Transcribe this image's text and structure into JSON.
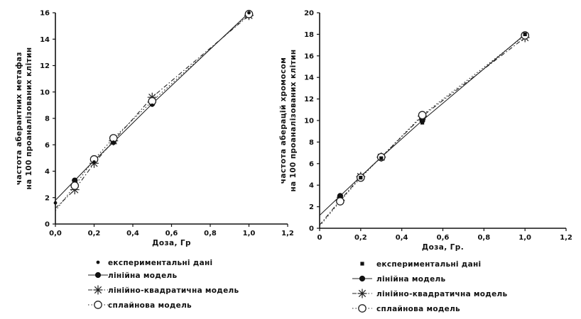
{
  "chart_data": [
    {
      "type": "line",
      "xlabel": "Доза, Гр",
      "ylabel_line1": "частота аберантних метафаз",
      "ylabel_line2": "на 100 проаналізованих клітин",
      "xlim": [
        0,
        1.2
      ],
      "ylim": [
        0,
        16
      ],
      "xticks": [
        "0,0",
        "0,2",
        "0,4",
        "0,6",
        "0,8",
        "1,0",
        "1,2"
      ],
      "yticks": [
        "0",
        "2",
        "4",
        "6",
        "8",
        "10",
        "12",
        "14",
        "16"
      ],
      "experimental": {
        "x": [
          0,
          0.1,
          0.2,
          0.3,
          0.5,
          1.0
        ],
        "y": [
          1.6,
          3.3,
          4.7,
          6.2,
          9.0,
          16.0
        ]
      },
      "series": [
        {
          "name": "лінійна модель",
          "marker": "filled-circle",
          "style": "solid",
          "x": [
            0,
            0.1,
            0.2,
            0.3,
            0.5,
            1.0
          ],
          "y": [
            1.8,
            3.3,
            4.8,
            6.2,
            9.1,
            16.0
          ]
        },
        {
          "name": "лінійно-квадратична модель",
          "marker": "asterisk",
          "style": "dashdot",
          "x": [
            0,
            0.1,
            0.2,
            0.3,
            0.5,
            1.0
          ],
          "y": [
            1.2,
            2.6,
            4.6,
            6.3,
            9.6,
            15.8
          ]
        },
        {
          "name": "сплайнова модель",
          "marker": "open-circle",
          "style": "dotted",
          "x": [
            0,
            0.1,
            0.2,
            0.3,
            0.5,
            1.0
          ],
          "y": [
            1.0,
            2.9,
            4.9,
            6.5,
            9.3,
            15.9
          ]
        }
      ],
      "legend": {
        "experimental": "експериментальні дані"
      }
    },
    {
      "type": "line",
      "xlabel": "Доза, Гр.",
      "ylabel_line1": "частота аберацій хромосом",
      "ylabel_line2": "на 100 проаналізованих клітин",
      "xlim": [
        0,
        1.2
      ],
      "ylim": [
        0,
        20
      ],
      "xticks": [
        "0",
        "0,2",
        "0,4",
        "0,6",
        "0,8",
        "1,0",
        "1,2"
      ],
      "yticks": [
        "0",
        "2",
        "4",
        "6",
        "8",
        "10",
        "12",
        "14",
        "16",
        "18",
        "20"
      ],
      "experimental": {
        "x": [
          0.1,
          0.2,
          0.3,
          0.5,
          1.0
        ],
        "y": [
          3.0,
          4.7,
          6.5,
          9.8,
          18.0
        ]
      },
      "series": [
        {
          "name": "лінійна модель",
          "marker": "filled-circle",
          "style": "solid",
          "x": [
            0,
            0.1,
            0.2,
            0.3,
            0.5,
            1.0
          ],
          "y": [
            1.2,
            3.0,
            4.8,
            6.6,
            10.0,
            18.0
          ]
        },
        {
          "name": "лінійно-квадратична модель",
          "marker": "asterisk",
          "style": "dashdot",
          "x": [
            0,
            0.1,
            0.2,
            0.3,
            0.5,
            1.0
          ],
          "y": [
            0.3,
            2.6,
            4.8,
            6.6,
            10.4,
            17.7
          ]
        },
        {
          "name": "сплайнова модель",
          "marker": "open-circle",
          "style": "dotted",
          "x": [
            0,
            0.1,
            0.2,
            0.3,
            0.5,
            1.0
          ],
          "y": [
            0.2,
            2.5,
            4.7,
            6.6,
            10.5,
            17.9
          ]
        }
      ],
      "legend": {
        "experimental": "експериментальні дані"
      }
    }
  ]
}
